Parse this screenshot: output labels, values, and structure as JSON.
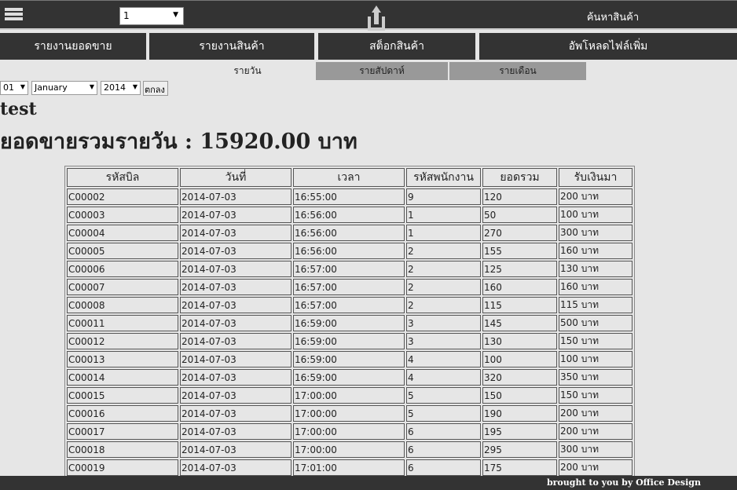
{
  "topbar": {
    "page_select": "1",
    "search_label": "ค้นหาสินค้า"
  },
  "nav": [
    "รายงานยอดขาย",
    "รายงานสินค้า",
    "สต็อกสินค้า",
    "อัพโหลดไฟล์เพิ่ม"
  ],
  "subtabs": [
    "รายวัน",
    "รายสัปดาห์",
    "รายเดือน"
  ],
  "filters": {
    "day": "01",
    "month": "January",
    "year": "2014",
    "submit": "ตกลง"
  },
  "user": "test",
  "summary": "ยอดขายรวมรายวัน : 15920.00 บาท",
  "table": {
    "headers": [
      "รหัสบิล",
      "วันที่",
      "เวลา",
      "รหัสพนักงาน",
      "ยอดรวม",
      "รับเงินมา"
    ],
    "rows": [
      [
        "C00002",
        "2014-07-03",
        "16:55:00",
        "9",
        "120",
        "200 บาท"
      ],
      [
        "C00003",
        "2014-07-03",
        "16:56:00",
        "1",
        "50",
        "100 บาท"
      ],
      [
        "C00004",
        "2014-07-03",
        "16:56:00",
        "1",
        "270",
        "300 บาท"
      ],
      [
        "C00005",
        "2014-07-03",
        "16:56:00",
        "2",
        "155",
        "160 บาท"
      ],
      [
        "C00006",
        "2014-07-03",
        "16:57:00",
        "2",
        "125",
        "130 บาท"
      ],
      [
        "C00007",
        "2014-07-03",
        "16:57:00",
        "2",
        "160",
        "160 บาท"
      ],
      [
        "C00008",
        "2014-07-03",
        "16:57:00",
        "2",
        "115",
        "115 บาท"
      ],
      [
        "C00011",
        "2014-07-03",
        "16:59:00",
        "3",
        "145",
        "500 บาท"
      ],
      [
        "C00012",
        "2014-07-03",
        "16:59:00",
        "3",
        "130",
        "150 บาท"
      ],
      [
        "C00013",
        "2014-07-03",
        "16:59:00",
        "4",
        "100",
        "100 บาท"
      ],
      [
        "C00014",
        "2014-07-03",
        "16:59:00",
        "4",
        "320",
        "350 บาท"
      ],
      [
        "C00015",
        "2014-07-03",
        "17:00:00",
        "5",
        "150",
        "150 บาท"
      ],
      [
        "C00016",
        "2014-07-03",
        "17:00:00",
        "5",
        "190",
        "200 บาท"
      ],
      [
        "C00017",
        "2014-07-03",
        "17:00:00",
        "6",
        "195",
        "200 บาท"
      ],
      [
        "C00018",
        "2014-07-03",
        "17:00:00",
        "6",
        "295",
        "300 บาท"
      ],
      [
        "C00019",
        "2014-07-03",
        "17:01:00",
        "6",
        "175",
        "200 บาท"
      ]
    ]
  },
  "footer": "brought to you by Office Design"
}
